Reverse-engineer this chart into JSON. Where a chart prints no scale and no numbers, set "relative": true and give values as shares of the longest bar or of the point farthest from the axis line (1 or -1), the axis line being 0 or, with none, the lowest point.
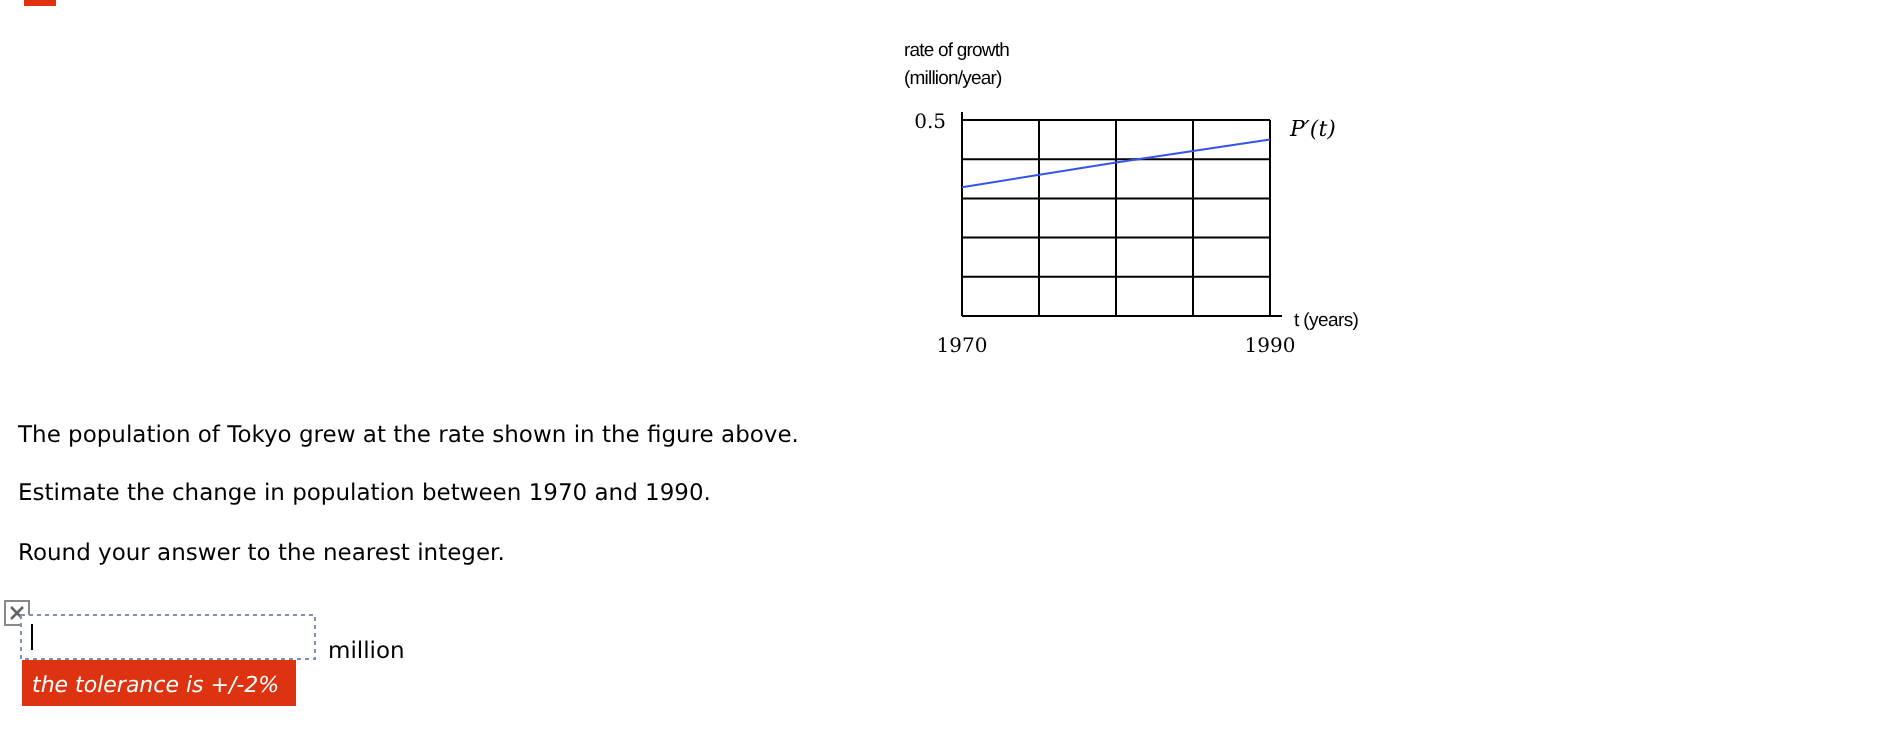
{
  "chart_data": {
    "type": "line",
    "x": [
      1970,
      1980,
      1990
    ],
    "relative": true,
    "series": [
      {
        "name": "P′(t)",
        "color": "#3355ee",
        "values": [
          0.73,
          0.87,
          1
        ]
      }
    ],
    "xlim": [
      1970,
      1990
    ],
    "xticks": [
      1970,
      {
        "value": 1975,
        "label": null
      },
      {
        "value": 1980,
        "label": null
      },
      {
        "value": 1985,
        "label": null
      },
      1990
    ],
    "ylabel": "rate of growth (million/year)",
    "xlabel": "t (years)",
    "grid": true,
    "annotations": [
      "0.5",
      "The population of Tokyo grew at the rate shown in the figure above.",
      "Estimate the change in population between 1970 and 1990.",
      "Round your answer to the nearest integer.",
      "million",
      "the tolerance is +/-2%"
    ]
  }
}
